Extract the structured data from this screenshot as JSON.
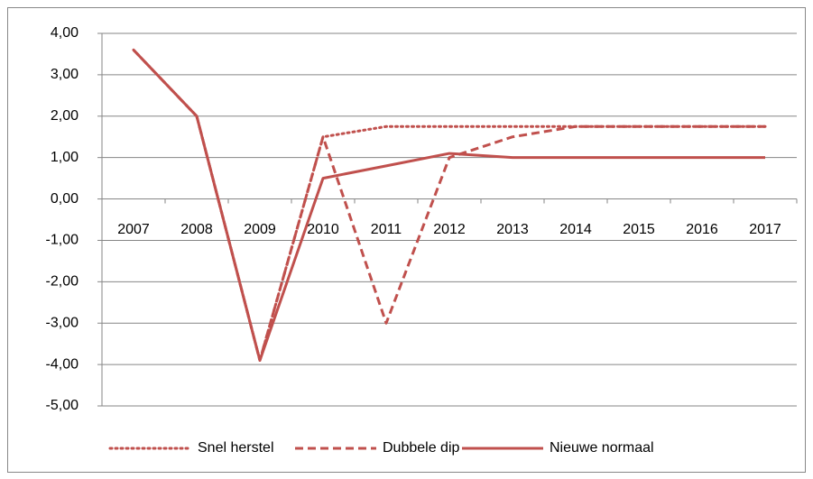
{
  "chart_data": {
    "type": "line",
    "categories": [
      "2007",
      "2008",
      "2009",
      "2010",
      "2011",
      "2012",
      "2013",
      "2014",
      "2015",
      "2016",
      "2017"
    ],
    "series": [
      {
        "name": "Snel herstel",
        "color": "#c0504d",
        "style": "dotted",
        "values": [
          3.6,
          2.0,
          -3.9,
          1.5,
          1.75,
          1.75,
          1.75,
          1.75,
          1.75,
          1.75,
          1.75
        ]
      },
      {
        "name": "Dubbele dip",
        "color": "#c0504d",
        "style": "dashed",
        "values": [
          3.6,
          2.0,
          -3.9,
          1.5,
          -3.0,
          1.0,
          1.5,
          1.75,
          1.75,
          1.75,
          1.75
        ]
      },
      {
        "name": "Nieuwe normaal",
        "color": "#c0504d",
        "style": "solid",
        "values": [
          3.6,
          2.0,
          -3.9,
          0.5,
          0.8,
          1.1,
          1.0,
          1.0,
          1.0,
          1.0,
          1.0
        ]
      }
    ],
    "ylim": [
      -5,
      4
    ],
    "yticks": [
      {
        "value": -5,
        "label": "-5,00"
      },
      {
        "value": -4,
        "label": "-4,00"
      },
      {
        "value": -3,
        "label": "-3,00"
      },
      {
        "value": -2,
        "label": "-2,00"
      },
      {
        "value": -1,
        "label": "-1,00"
      },
      {
        "value": 0,
        "label": "0,00"
      },
      {
        "value": 1,
        "label": "1,00"
      },
      {
        "value": 2,
        "label": "2,00"
      },
      {
        "value": 3,
        "label": "3,00"
      },
      {
        "value": 4,
        "label": "4,00"
      }
    ],
    "grid": true,
    "legend": "bottom"
  }
}
